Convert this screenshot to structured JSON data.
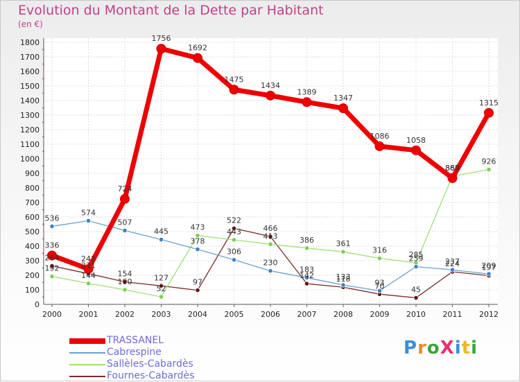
{
  "title": "Evolution du Montant de la Dette par Habitant",
  "subtitle": "(en €)",
  "logo": "ProXiti",
  "colors": {
    "title": "#c0408a",
    "legend_text": "#6c6cd8"
  },
  "chart_data": {
    "type": "line",
    "x": [
      "2000",
      "2001",
      "2002",
      "2003",
      "2004",
      "2005",
      "2006",
      "2007",
      "2008",
      "2009",
      "2010",
      "2011",
      "2012"
    ],
    "ylim": [
      0,
      1800
    ],
    "yticks": [
      0,
      100,
      200,
      300,
      400,
      500,
      600,
      700,
      800,
      900,
      1000,
      1100,
      1200,
      1300,
      1400,
      1500,
      1600,
      1700,
      1800
    ],
    "grid": true,
    "legend_position": "bottom-left",
    "series": [
      {
        "name": "Fournes-Cabardès",
        "color": "#7b2c2c",
        "marker": "#6a1010",
        "width": 1.3,
        "values": [
          264,
          211,
          154,
          127,
          97,
          522,
          466,
          142,
          118,
          70,
          45,
          224,
          197
        ],
        "labels": [
          "264",
          "211",
          "154",
          "127",
          "97",
          "522",
          "466",
          "142",
          "118",
          "70",
          "45",
          "224",
          "197"
        ]
      },
      {
        "name": "Sallèles-Cabardès",
        "color": "#9ee07a",
        "marker": "#7ccf50",
        "width": 1.3,
        "values": [
          192,
          144,
          100,
          52,
          473,
          443,
          413,
          386,
          361,
          316,
          285,
          880,
          926
        ],
        "labels": [
          "192",
          "144",
          "100",
          "52",
          "473",
          "443",
          "413",
          "386",
          "361",
          "316",
          "285",
          "880",
          "926"
        ]
      },
      {
        "name": "Cabrespine",
        "color": "#6aa0d0",
        "marker": "#3f82c4",
        "width": 1.3,
        "values": [
          536,
          574,
          507,
          445,
          378,
          306,
          230,
          183,
          133,
          93,
          259,
          237,
          209
        ],
        "labels": [
          "536",
          "574",
          "507",
          "445",
          "378",
          "306",
          "230",
          "183",
          "133",
          "93",
          "259",
          "237",
          "209"
        ]
      },
      {
        "name": "TRASSANEL",
        "color": "#ee0000",
        "marker": "#ee0000",
        "width": 7,
        "values": [
          336,
          243,
          724,
          1756,
          1692,
          1475,
          1434,
          1389,
          1347,
          1086,
          1058,
          867,
          1315
        ],
        "labels": [
          "336",
          "243",
          "724",
          "1756",
          "1692",
          "1475",
          "1434",
          "1389",
          "1347",
          "1086",
          "1058",
          "867",
          "1315"
        ]
      }
    ]
  }
}
